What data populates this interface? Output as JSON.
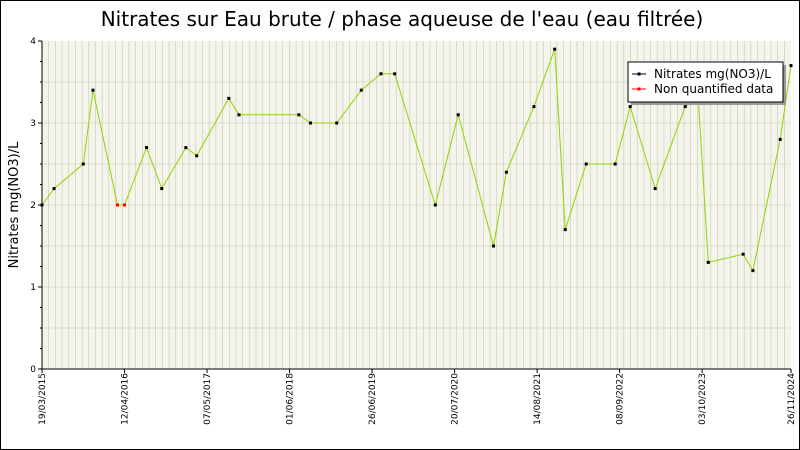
{
  "chart_data": {
    "type": "line",
    "title": "Nitrates sur Eau brute / phase aqueuse de l'eau (eau filtrée)",
    "ylabel": "Nitrates mg(NO3)/L",
    "xlabel": "",
    "ylim": [
      0,
      4
    ],
    "yticks": [
      0,
      1,
      2,
      3,
      4
    ],
    "xlim": [
      "2015-03-19",
      "2024-11-26"
    ],
    "xtick_labels": [
      "19/03/2015",
      "12/04/2016",
      "07/05/2017",
      "01/06/2018",
      "26/06/2019",
      "20/07/2020",
      "14/08/2021",
      "08/09/2022",
      "03/10/2023",
      "26/11/2024"
    ],
    "xticks": [
      "2015-03-19",
      "2016-04-12",
      "2017-05-07",
      "2018-06-01",
      "2019-06-26",
      "2020-07-20",
      "2021-08-14",
      "2022-09-08",
      "2023-10-03",
      "2024-11-26"
    ],
    "grid": true,
    "legend_position": "top-right",
    "colors": {
      "line": "#8fd400",
      "quantified": "#000000",
      "non_quantified": "#ff0000",
      "grid": "#c8c8b0",
      "plot_bg": "#f4f4ec"
    },
    "series": [
      {
        "name": "Nitrates mg(NO3)/L",
        "points": [
          {
            "x": "2015-03-19",
            "y": 2.0
          },
          {
            "x": "2015-05-15",
            "y": 2.2
          },
          {
            "x": "2015-09-30",
            "y": 2.5
          },
          {
            "x": "2015-11-15",
            "y": 3.4
          },
          {
            "x": "2016-03-10",
            "y": 2.0,
            "q": false
          },
          {
            "x": "2016-04-12",
            "y": 2.0,
            "q": false
          },
          {
            "x": "2016-07-25",
            "y": 2.7
          },
          {
            "x": "2016-10-05",
            "y": 2.2
          },
          {
            "x": "2017-01-27",
            "y": 2.7
          },
          {
            "x": "2017-03-19",
            "y": 2.6
          },
          {
            "x": "2017-08-18",
            "y": 3.3
          },
          {
            "x": "2017-10-05",
            "y": 3.1
          },
          {
            "x": "2018-07-15",
            "y": 3.1
          },
          {
            "x": "2018-09-08",
            "y": 3.0
          },
          {
            "x": "2019-01-10",
            "y": 3.0
          },
          {
            "x": "2019-05-06",
            "y": 3.4
          },
          {
            "x": "2019-08-07",
            "y": 3.6
          },
          {
            "x": "2019-10-11",
            "y": 3.6
          },
          {
            "x": "2020-04-20",
            "y": 2.0
          },
          {
            "x": "2020-08-06",
            "y": 3.1
          },
          {
            "x": "2021-01-20",
            "y": 1.5
          },
          {
            "x": "2021-03-22",
            "y": 2.4
          },
          {
            "x": "2021-07-30",
            "y": 3.2
          },
          {
            "x": "2021-11-05",
            "y": 3.9
          },
          {
            "x": "2021-12-25",
            "y": 1.7
          },
          {
            "x": "2022-04-03",
            "y": 2.5
          },
          {
            "x": "2022-08-18",
            "y": 2.5
          },
          {
            "x": "2022-10-28",
            "y": 3.2
          },
          {
            "x": "2023-02-23",
            "y": 2.2
          },
          {
            "x": "2023-07-15",
            "y": 3.2
          },
          {
            "x": "2023-09-15",
            "y": 3.3
          },
          {
            "x": "2023-11-01",
            "y": 1.3
          },
          {
            "x": "2024-04-14",
            "y": 1.4
          },
          {
            "x": "2024-05-30",
            "y": 1.2
          },
          {
            "x": "2024-10-06",
            "y": 2.8
          },
          {
            "x": "2024-11-26",
            "y": 3.7
          }
        ]
      }
    ],
    "legend": [
      {
        "label": "Nitrates mg(NO3)/L",
        "color": "#000000"
      },
      {
        "label": "Non quantified data",
        "color": "#ff0000"
      }
    ]
  }
}
